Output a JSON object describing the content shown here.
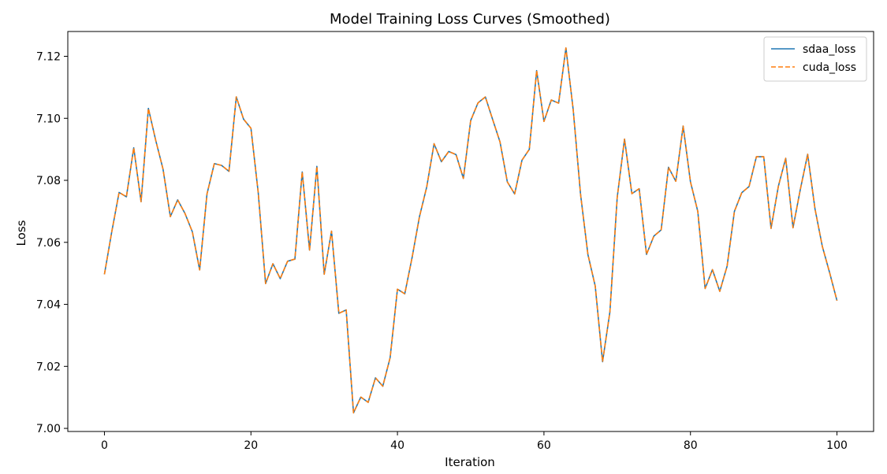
{
  "chart_data": {
    "type": "line",
    "title": "Model Training Loss Curves (Smoothed)",
    "xlabel": "Iteration",
    "ylabel": "Loss",
    "xlim": [
      -5,
      105
    ],
    "ylim": [
      6.999,
      7.128
    ],
    "xticks": [
      0,
      20,
      40,
      60,
      80,
      100
    ],
    "yticks": [
      7.0,
      7.02,
      7.04,
      7.06,
      7.08,
      7.1,
      7.12
    ],
    "grid": false,
    "legend_position": "top-right",
    "x": [
      0,
      1,
      2,
      3,
      4,
      5,
      6,
      7,
      8,
      9,
      10,
      11,
      12,
      13,
      14,
      15,
      16,
      17,
      18,
      19,
      20,
      21,
      22,
      23,
      24,
      25,
      26,
      27,
      28,
      29,
      30,
      31,
      32,
      33,
      34,
      35,
      36,
      37,
      38,
      39,
      40,
      41,
      42,
      43,
      44,
      45,
      46,
      47,
      48,
      49,
      50,
      51,
      52,
      53,
      54,
      55,
      56,
      57,
      58,
      59,
      60,
      61,
      62,
      63,
      64,
      65,
      66,
      67,
      68,
      69,
      70,
      71,
      72,
      73,
      74,
      75,
      76,
      77,
      78,
      79,
      80,
      81,
      82,
      83,
      84,
      85,
      86,
      87,
      88,
      89,
      90,
      91,
      92,
      93,
      94,
      95,
      96,
      97,
      98,
      99,
      100
    ],
    "series": [
      {
        "name": "sdaa_loss",
        "color": "#1f77b4",
        "style": "solid",
        "values": [
          7.0497,
          7.0634,
          7.0761,
          7.0747,
          7.0905,
          7.0731,
          7.1032,
          7.0929,
          7.0836,
          7.0683,
          7.0737,
          7.0693,
          7.0634,
          7.0511,
          7.0756,
          7.0854,
          7.0848,
          7.0829,
          7.1069,
          7.0997,
          7.0968,
          7.0759,
          7.0467,
          7.0531,
          7.0483,
          7.0539,
          7.0546,
          7.0827,
          7.0575,
          7.0845,
          7.0497,
          7.0636,
          7.0371,
          7.0382,
          7.005,
          7.0101,
          7.0084,
          7.0163,
          7.0136,
          7.0228,
          7.0449,
          7.0434,
          7.0551,
          7.0682,
          7.0779,
          7.0918,
          7.086,
          7.0893,
          7.0883,
          7.0806,
          7.0993,
          7.105,
          7.1069,
          7.0996,
          7.0924,
          7.0795,
          7.0756,
          7.0865,
          7.09,
          7.1154,
          7.099,
          7.1059,
          7.1049,
          7.1227,
          7.1026,
          7.0754,
          7.0561,
          7.0459,
          7.0215,
          7.0375,
          7.0745,
          7.0933,
          7.0757,
          7.0773,
          7.0561,
          7.062,
          7.064,
          7.0842,
          7.0797,
          7.0975,
          7.0795,
          7.07,
          7.0451,
          7.0512,
          7.0442,
          7.0523,
          7.07,
          7.076,
          7.078,
          7.0876,
          7.0876,
          7.0645,
          7.0781,
          7.0871,
          7.0647,
          7.0771,
          7.0884,
          7.0708,
          7.0587,
          7.0502,
          7.0412
        ]
      },
      {
        "name": "cuda_loss",
        "color": "#ff7f0e",
        "style": "dashed",
        "values": [
          7.0497,
          7.0634,
          7.0761,
          7.0747,
          7.0905,
          7.0731,
          7.1032,
          7.0929,
          7.0836,
          7.0683,
          7.0737,
          7.0693,
          7.0634,
          7.0511,
          7.0756,
          7.0854,
          7.0848,
          7.0829,
          7.1069,
          7.0997,
          7.0968,
          7.0759,
          7.0467,
          7.0531,
          7.0483,
          7.0539,
          7.0546,
          7.0827,
          7.0575,
          7.0845,
          7.0497,
          7.0636,
          7.0371,
          7.0382,
          7.005,
          7.0101,
          7.0084,
          7.0163,
          7.0136,
          7.0228,
          7.0449,
          7.0434,
          7.0551,
          7.0682,
          7.0779,
          7.0918,
          7.086,
          7.0893,
          7.0883,
          7.0806,
          7.0993,
          7.105,
          7.1069,
          7.0996,
          7.0924,
          7.0795,
          7.0756,
          7.0865,
          7.09,
          7.1154,
          7.099,
          7.1059,
          7.1049,
          7.1227,
          7.1026,
          7.0754,
          7.0561,
          7.0459,
          7.0215,
          7.0375,
          7.0745,
          7.0933,
          7.0757,
          7.0773,
          7.0561,
          7.062,
          7.064,
          7.0842,
          7.0797,
          7.0975,
          7.0795,
          7.07,
          7.0451,
          7.0512,
          7.0442,
          7.0523,
          7.07,
          7.076,
          7.078,
          7.0876,
          7.0876,
          7.0645,
          7.0781,
          7.0871,
          7.0647,
          7.0771,
          7.0884,
          7.0708,
          7.0587,
          7.0502,
          7.0412
        ]
      }
    ]
  }
}
